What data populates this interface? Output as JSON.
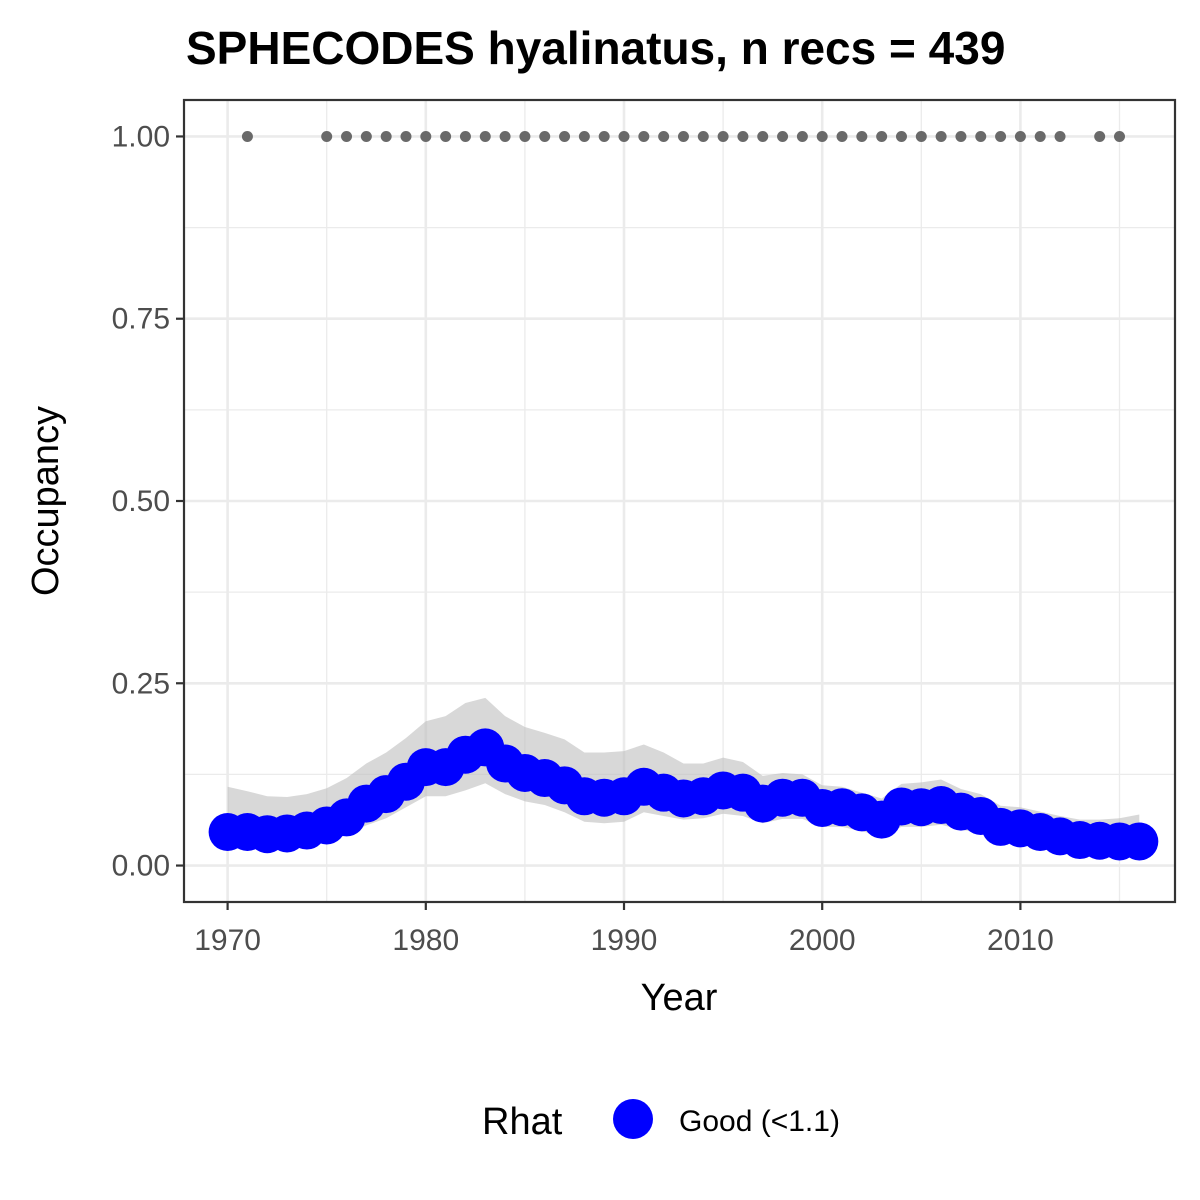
{
  "chart_data": {
    "type": "line",
    "title": "SPHECODES hyalinatus, n recs = 439",
    "xlabel": "Year",
    "ylabel": "Occupancy",
    "xlim": [
      1967.8,
      2017.8
    ],
    "ylim": [
      -0.05,
      1.05
    ],
    "x_ticks": [
      1970,
      1980,
      1990,
      2000,
      2010
    ],
    "x_tick_labels": [
      "1970",
      "1980",
      "1990",
      "2000",
      "2010"
    ],
    "y_ticks": [
      0,
      0.25,
      0.5,
      0.75,
      1
    ],
    "y_tick_labels": [
      "0.00",
      "0.25",
      "0.50",
      "0.75",
      "1.00"
    ],
    "grid": true,
    "legend": {
      "title": "Rhat",
      "position": "bottom",
      "entries": [
        {
          "label": "Good (<1.1)",
          "color": "#0000ff"
        }
      ]
    },
    "colors": {
      "series": "#0000ff",
      "ribbon": "#bebebe",
      "records": "#696969",
      "grid": "#ebebeb",
      "panel_border": "#333333"
    },
    "years": [
      1970,
      1971,
      1972,
      1973,
      1974,
      1975,
      1976,
      1977,
      1978,
      1979,
      1980,
      1981,
      1982,
      1983,
      1984,
      1985,
      1986,
      1987,
      1988,
      1989,
      1990,
      1991,
      1992,
      1993,
      1994,
      1995,
      1996,
      1997,
      1998,
      1999,
      2000,
      2001,
      2002,
      2003,
      2004,
      2005,
      2006,
      2007,
      2008,
      2009,
      2010,
      2011,
      2012,
      2013,
      2014,
      2015,
      2016
    ],
    "series": [
      {
        "name": "Good (<1.1)",
        "values": [
          0.046,
          0.046,
          0.043,
          0.044,
          0.048,
          0.055,
          0.066,
          0.085,
          0.098,
          0.115,
          0.135,
          0.135,
          0.152,
          0.162,
          0.14,
          0.127,
          0.12,
          0.11,
          0.095,
          0.093,
          0.095,
          0.108,
          0.1,
          0.092,
          0.095,
          0.103,
          0.1,
          0.085,
          0.093,
          0.093,
          0.079,
          0.08,
          0.073,
          0.063,
          0.081,
          0.08,
          0.083,
          0.074,
          0.068,
          0.053,
          0.051,
          0.046,
          0.04,
          0.035,
          0.034,
          0.033,
          0.033
        ],
        "lower": [
          0.03,
          0.029,
          0.028,
          0.027,
          0.029,
          0.033,
          0.042,
          0.055,
          0.065,
          0.08,
          0.095,
          0.095,
          0.103,
          0.113,
          0.098,
          0.088,
          0.083,
          0.073,
          0.06,
          0.058,
          0.06,
          0.073,
          0.068,
          0.063,
          0.065,
          0.071,
          0.068,
          0.058,
          0.064,
          0.064,
          0.053,
          0.053,
          0.047,
          0.04,
          0.053,
          0.053,
          0.056,
          0.049,
          0.045,
          0.033,
          0.032,
          0.028,
          0.024,
          0.021,
          0.02,
          0.019,
          0.018
        ],
        "upper": [
          0.108,
          0.102,
          0.095,
          0.094,
          0.098,
          0.106,
          0.12,
          0.14,
          0.155,
          0.175,
          0.198,
          0.205,
          0.223,
          0.23,
          0.205,
          0.19,
          0.182,
          0.173,
          0.155,
          0.155,
          0.157,
          0.166,
          0.155,
          0.14,
          0.14,
          0.148,
          0.142,
          0.123,
          0.127,
          0.125,
          0.11,
          0.108,
          0.1,
          0.092,
          0.112,
          0.114,
          0.118,
          0.105,
          0.098,
          0.082,
          0.08,
          0.074,
          0.068,
          0.063,
          0.063,
          0.065,
          0.07
        ]
      }
    ],
    "record_years": [
      1971,
      1975,
      1976,
      1977,
      1978,
      1979,
      1980,
      1981,
      1982,
      1983,
      1984,
      1985,
      1986,
      1987,
      1988,
      1989,
      1990,
      1991,
      1992,
      1993,
      1994,
      1995,
      1996,
      1997,
      1998,
      1999,
      2000,
      2001,
      2002,
      2003,
      2004,
      2005,
      2006,
      2007,
      2008,
      2009,
      2010,
      2011,
      2012,
      2014,
      2015
    ],
    "record_value": 1.0
  }
}
